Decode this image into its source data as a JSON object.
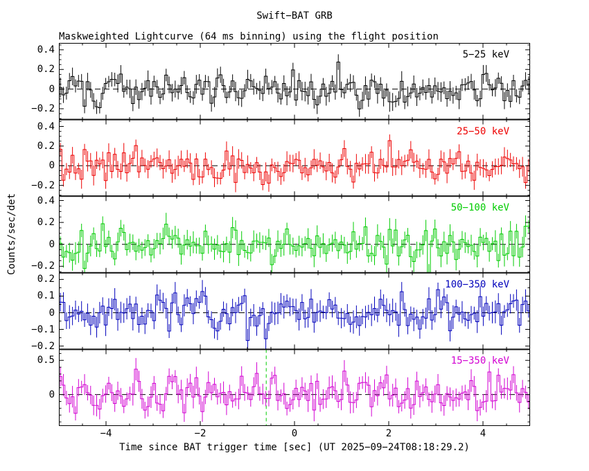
{
  "chart_data": {
    "type": "line",
    "style": "step-histogram lightcurves with vertical error bars, 5 stacked panels sharing the time axis",
    "title": "Swift−BAT GRB",
    "subtitle": "Maskweighted Lightcurve (64 ms binning) using the flight position",
    "xlabel": "Time since BAT trigger time [sec] (UT 2025−09−24T08:18:29.2)",
    "ylabel": "Counts/sec/det",
    "x_range": [
      -5,
      5
    ],
    "bin_width_sec": 0.064,
    "x_minor_step": 0.5,
    "x_ticks": [
      {
        "value": -4,
        "label": "−4"
      },
      {
        "value": -2,
        "label": "−2"
      },
      {
        "value": 0,
        "label": "0"
      },
      {
        "value": 2,
        "label": "2"
      },
      {
        "value": 4,
        "label": "4"
      }
    ],
    "zero_line": {
      "style": "dashed",
      "color": "#000000",
      "value": 0
    },
    "event_marker": {
      "panel_index": 4,
      "time_sec": -0.6,
      "color": "#00cc00",
      "style": "dashed-vertical"
    },
    "panels": [
      {
        "label": "5−25 keV",
        "color": "#000000",
        "ylim": [
          -0.31,
          0.47
        ],
        "y_minor_step": 0.05,
        "y_ticks": [
          {
            "value": 0.4,
            "label": "0.4"
          },
          {
            "value": 0.2,
            "label": "0.2"
          },
          {
            "value": 0,
            "label": "0"
          },
          {
            "value": -0.2,
            "label": "−0.2"
          }
        ],
        "mean": 0,
        "noise_sigma": 0.085,
        "error_bar": 0.08,
        "seed": 101
      },
      {
        "label": "25−50 keV",
        "color": "#ee0000",
        "ylim": [
          -0.31,
          0.47
        ],
        "y_minor_step": 0.05,
        "y_ticks": [
          {
            "value": 0.4,
            "label": "0.4"
          },
          {
            "value": 0.2,
            "label": "0.2"
          },
          {
            "value": 0,
            "label": "0"
          },
          {
            "value": -0.2,
            "label": "−0.2"
          }
        ],
        "mean": 0,
        "noise_sigma": 0.085,
        "error_bar": 0.08,
        "seed": 202
      },
      {
        "label": "50−100 keV",
        "color": "#00cc00",
        "ylim": [
          -0.26,
          0.44
        ],
        "y_minor_step": 0.05,
        "y_ticks": [
          {
            "value": 0.4,
            "label": "0.4"
          },
          {
            "value": 0.2,
            "label": "0.2"
          },
          {
            "value": 0,
            "label": "0"
          },
          {
            "value": -0.2,
            "label": "−0.2"
          }
        ],
        "mean": 0,
        "noise_sigma": 0.08,
        "error_bar": 0.08,
        "seed": 303
      },
      {
        "label": "100−350 keV",
        "color": "#0000bb",
        "ylim": [
          -0.22,
          0.24
        ],
        "y_minor_step": 0.05,
        "y_ticks": [
          {
            "value": 0.2,
            "label": "0.2"
          },
          {
            "value": 0.1,
            "label": "0.1"
          },
          {
            "value": 0,
            "label": "0"
          },
          {
            "value": -0.1,
            "label": "−0.1"
          },
          {
            "value": -0.2,
            "label": "−0.2"
          }
        ],
        "mean": 0,
        "noise_sigma": 0.055,
        "error_bar": 0.055,
        "seed": 404
      },
      {
        "label": "15−350 keV",
        "color": "#d200d2",
        "ylim": [
          -0.46,
          0.66
        ],
        "y_minor_step": 0.1,
        "y_ticks": [
          {
            "value": 0.5,
            "label": "0.5"
          },
          {
            "value": 0,
            "label": "0"
          }
        ],
        "mean": 0,
        "noise_sigma": 0.15,
        "error_bar": 0.13,
        "seed": 505
      }
    ]
  }
}
